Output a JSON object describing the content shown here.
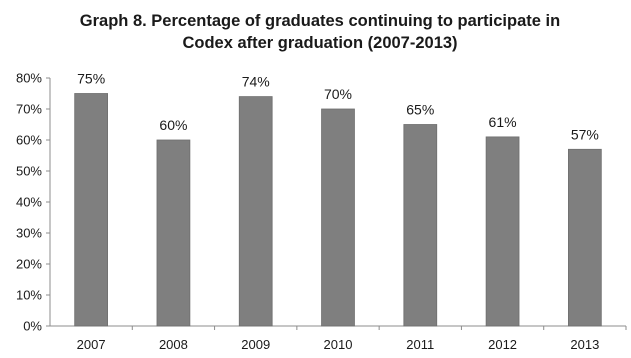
{
  "chart_data": {
    "type": "bar",
    "title_line1": "Graph 8. Percentage of graduates continuing to participate in",
    "title_line2": "Codex after graduation (2007-2013)",
    "xlabel": "",
    "ylabel": "",
    "categories": [
      "2007",
      "2008",
      "2009",
      "2010",
      "2011",
      "2012",
      "2013"
    ],
    "values": [
      75,
      60,
      74,
      70,
      65,
      61,
      57
    ],
    "data_labels": [
      "75%",
      "60%",
      "74%",
      "70%",
      "65%",
      "61%",
      "57%"
    ],
    "yticks": [
      "0%",
      "10%",
      "20%",
      "30%",
      "40%",
      "50%",
      "60%",
      "70%",
      "80%"
    ],
    "ylim": [
      0,
      80
    ],
    "bar_color": "#7f7f7f",
    "grid": false,
    "legend": "none"
  }
}
